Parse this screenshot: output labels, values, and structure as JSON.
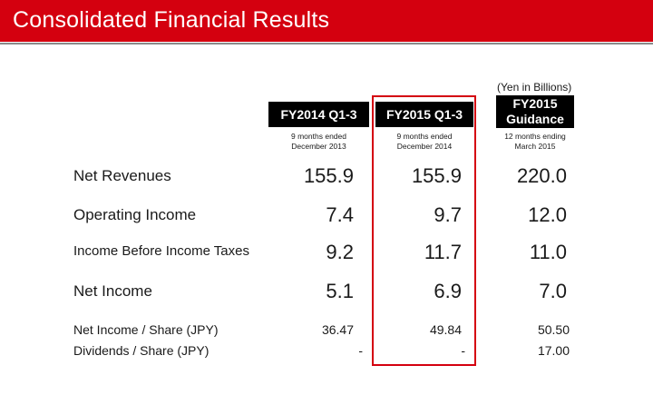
{
  "header": {
    "title": "Consolidated Financial Results"
  },
  "table": {
    "units": "(Yen in Billions)",
    "columns": [
      {
        "label": "FY2014 Q1-3",
        "sub1": "9 months ended",
        "sub2": "December 2013"
      },
      {
        "label": "FY2015 Q1-3",
        "sub1": "9 months ended",
        "sub2": "December 2014"
      },
      {
        "label_line1": "FY2015",
        "label_line2": "Guidance",
        "sub1": "12 months ending",
        "sub2": "March 2015"
      }
    ],
    "rows": [
      {
        "label": "Net Revenues",
        "values": [
          "155.9",
          "155.9",
          "220.0"
        ]
      },
      {
        "label": "Operating Income",
        "values": [
          "7.4",
          "9.7",
          "12.0"
        ]
      },
      {
        "label": "Income Before Income Taxes",
        "values": [
          "9.2",
          "11.7",
          "11.0"
        ]
      },
      {
        "label": "Net Income",
        "values": [
          "5.1",
          "6.9",
          "7.0"
        ]
      },
      {
        "label": "Net Income / Share (JPY)",
        "values": [
          "36.47",
          "49.84",
          "50.50"
        ]
      },
      {
        "label": "Dividends / Share (JPY)",
        "values": [
          "-",
          "-",
          "17.00"
        ]
      }
    ]
  },
  "colors": {
    "brand_red": "#d4000f",
    "header_black": "#000000"
  }
}
